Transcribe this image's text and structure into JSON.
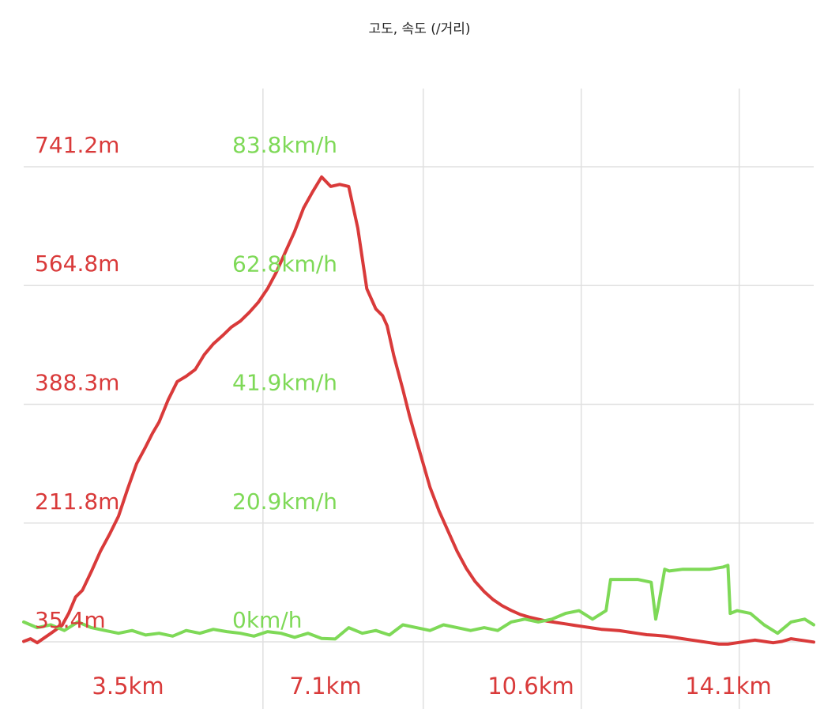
{
  "chart_data": {
    "type": "line",
    "title": "고도, 속도 (/거리)",
    "xlabel": "",
    "ylabel": "",
    "colors": {
      "altitude": "#d93a3a",
      "speed": "#7ed957",
      "grid": "#e0e0e0"
    },
    "x_axis": {
      "unit": "km",
      "range": [
        0,
        17.5
      ],
      "tick_values": [
        3.5,
        7.1,
        10.6,
        14.1
      ],
      "tick_labels": [
        "3.5km",
        "7.1km",
        "10.6km",
        "14.1km"
      ]
    },
    "y_axis_altitude": {
      "unit": "m",
      "range": [
        35.4,
        741.2
      ],
      "tick_values": [
        741.2,
        564.8,
        388.3,
        211.8,
        35.4
      ],
      "tick_labels": [
        "741.2m",
        "564.8m",
        "388.3m",
        "211.8m",
        "35.4m"
      ]
    },
    "y_axis_speed": {
      "unit": "km/h",
      "range": [
        0,
        83.8
      ],
      "tick_values": [
        83.8,
        62.8,
        41.9,
        20.9,
        0
      ],
      "tick_labels": [
        "83.8km/h",
        "62.8km/h",
        "41.9km/h",
        "20.9km/h",
        "0km/h"
      ]
    },
    "grid": true,
    "series": [
      {
        "key": "altitude",
        "axis": "altitude",
        "x": [
          0,
          0.15,
          0.3,
          0.6,
          0.85,
          1.0,
          1.15,
          1.3,
          1.5,
          1.7,
          1.9,
          2.1,
          2.3,
          2.5,
          2.7,
          2.85,
          3.0,
          3.2,
          3.4,
          3.6,
          3.8,
          4.0,
          4.2,
          4.4,
          4.6,
          4.8,
          5.0,
          5.2,
          5.4,
          5.6,
          5.8,
          6.0,
          6.2,
          6.4,
          6.6,
          6.8,
          7.0,
          7.2,
          7.4,
          7.6,
          7.8,
          7.95,
          8.05,
          8.2,
          8.4,
          8.55,
          8.7,
          8.85,
          9.0,
          9.2,
          9.4,
          9.6,
          9.8,
          10.0,
          10.2,
          10.4,
          10.6,
          10.8,
          11.0,
          11.2,
          11.4,
          11.6,
          11.8,
          12.0,
          12.2,
          12.4,
          12.6,
          12.8,
          13.0,
          13.2,
          13.4,
          13.6,
          13.8,
          14.0,
          14.2,
          14.4,
          14.6,
          14.8,
          15.0,
          15.2,
          15.4,
          15.6,
          15.8,
          16.0,
          16.2,
          16.4,
          16.6,
          16.8,
          17.0,
          17.2,
          17.5
        ],
        "values": [
          36,
          40,
          34,
          48,
          60,
          78,
          102,
          112,
          140,
          170,
          195,
          222,
          262,
          300,
          325,
          345,
          362,
          395,
          422,
          430,
          440,
          462,
          478,
          490,
          503,
          512,
          525,
          540,
          560,
          585,
          615,
          645,
          680,
          704,
          726,
          712,
          715,
          712,
          650,
          560,
          530,
          520,
          505,
          460,
          410,
          370,
          335,
          300,
          265,
          230,
          200,
          170,
          145,
          125,
          110,
          98,
          89,
          82,
          76,
          72,
          69,
          66,
          64,
          62,
          60,
          58,
          56,
          54,
          53,
          52,
          50,
          48,
          46,
          45,
          44,
          42,
          40,
          38,
          36,
          34,
          32,
          32,
          34,
          36,
          38,
          36,
          34,
          36,
          40,
          38,
          35
        ],
        "points_note": ""
      },
      {
        "key": "speed",
        "axis": "speed",
        "x": [
          0,
          0.3,
          0.6,
          0.9,
          1.2,
          1.5,
          1.8,
          2.1,
          2.4,
          2.7,
          3.0,
          3.3,
          3.6,
          3.9,
          4.2,
          4.5,
          4.8,
          5.1,
          5.4,
          5.7,
          6.0,
          6.3,
          6.6,
          6.9,
          7.2,
          7.5,
          7.8,
          8.1,
          8.4,
          8.7,
          9.0,
          9.3,
          9.6,
          9.9,
          10.2,
          10.5,
          10.8,
          11.1,
          11.4,
          11.7,
          12.0,
          12.3,
          12.6,
          12.9,
          13.0,
          13.3,
          13.6,
          13.9,
          14.0,
          14.05,
          14.2,
          14.3,
          14.6,
          14.9,
          15.2,
          15.5,
          15.6,
          15.65,
          15.8,
          16.1,
          16.4,
          16.7,
          17.0,
          17.3,
          17.5
        ],
        "values": [
          3.5,
          2.5,
          3.0,
          2.0,
          3.5,
          2.5,
          2.0,
          1.5,
          2.0,
          1.2,
          1.5,
          1.0,
          2.0,
          1.5,
          2.2,
          1.8,
          1.5,
          1.0,
          1.8,
          1.5,
          0.8,
          1.5,
          0.6,
          0.5,
          2.5,
          1.5,
          2.0,
          1.2,
          3.0,
          2.5,
          2.0,
          3.0,
          2.5,
          2.0,
          2.5,
          2.0,
          3.5,
          4.0,
          3.5,
          4.0,
          5.0,
          5.5,
          4.0,
          5.5,
          11.0,
          11.0,
          11.0,
          10.5,
          4.0,
          6.0,
          12.8,
          12.5,
          12.8,
          12.8,
          12.8,
          13.2,
          13.5,
          5.0,
          5.5,
          5.0,
          3.0,
          1.5,
          3.5,
          4.0,
          3.0
        ],
        "points_note": ""
      }
    ]
  }
}
